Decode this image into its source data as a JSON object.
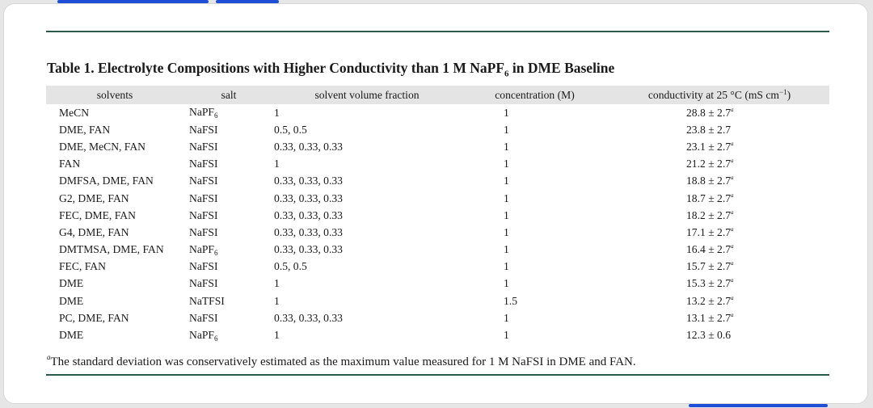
{
  "caption": {
    "prefix": "Table 1. Electrolyte Compositions with Higher Conductivity than 1 M NaPF",
    "sub": "6",
    "suffix": " in DME Baseline"
  },
  "table": {
    "headers": {
      "solvents": "solvents",
      "salt": "salt",
      "fraction": "solvent volume fraction",
      "concentration": "concentration (M)",
      "conductivity_pre": "conductivity at 25 °C (mS cm",
      "conductivity_sup": "−1",
      "conductivity_post": ")"
    },
    "rows": [
      {
        "solvents": "MeCN",
        "salt": "NaPF",
        "salt_sub": "6",
        "fraction": "1",
        "concentration": "1",
        "conductivity": "28.8 ± 2.7",
        "note": "a"
      },
      {
        "solvents": "DME, FAN",
        "salt": "NaFSI",
        "salt_sub": "",
        "fraction": "0.5, 0.5",
        "concentration": "1",
        "conductivity": "23.8 ± 2.7",
        "note": ""
      },
      {
        "solvents": "DME, MeCN, FAN",
        "salt": "NaFSI",
        "salt_sub": "",
        "fraction": "0.33, 0.33, 0.33",
        "concentration": "1",
        "conductivity": "23.1 ± 2.7",
        "note": "a"
      },
      {
        "solvents": "FAN",
        "salt": "NaFSI",
        "salt_sub": "",
        "fraction": "1",
        "concentration": "1",
        "conductivity": "21.2 ± 2.7",
        "note": "a"
      },
      {
        "solvents": "DMFSA, DME, FAN",
        "salt": "NaFSI",
        "salt_sub": "",
        "fraction": "0.33, 0.33, 0.33",
        "concentration": "1",
        "conductivity": "18.8 ± 2.7",
        "note": "a"
      },
      {
        "solvents": "G2, DME, FAN",
        "salt": "NaFSI",
        "salt_sub": "",
        "fraction": "0.33, 0.33, 0.33",
        "concentration": "1",
        "conductivity": "18.7 ± 2.7",
        "note": "a"
      },
      {
        "solvents": "FEC, DME, FAN",
        "salt": "NaFSI",
        "salt_sub": "",
        "fraction": "0.33, 0.33, 0.33",
        "concentration": "1",
        "conductivity": "18.2 ± 2.7",
        "note": "a"
      },
      {
        "solvents": "G4, DME, FAN",
        "salt": "NaFSI",
        "salt_sub": "",
        "fraction": "0.33, 0.33, 0.33",
        "concentration": "1",
        "conductivity": "17.1 ± 2.7",
        "note": "a"
      },
      {
        "solvents": "DMTMSA, DME, FAN",
        "salt": "NaPF",
        "salt_sub": "6",
        "fraction": "0.33, 0.33, 0.33",
        "concentration": "1",
        "conductivity": "16.4 ± 2.7",
        "note": "a"
      },
      {
        "solvents": "FEC, FAN",
        "salt": "NaFSI",
        "salt_sub": "",
        "fraction": "0.5, 0.5",
        "concentration": "1",
        "conductivity": "15.7 ± 2.7",
        "note": "a"
      },
      {
        "solvents": "DME",
        "salt": "NaFSI",
        "salt_sub": "",
        "fraction": "1",
        "concentration": "1",
        "conductivity": "15.3 ± 2.7",
        "note": "a"
      },
      {
        "solvents": "DME",
        "salt": "NaTFSI",
        "salt_sub": "",
        "fraction": "1",
        "concentration": "1.5",
        "conductivity": "13.2 ± 2.7",
        "note": "a"
      },
      {
        "solvents": "PC, DME, FAN",
        "salt": "NaFSI",
        "salt_sub": "",
        "fraction": "0.33, 0.33, 0.33",
        "concentration": "1",
        "conductivity": "13.1 ± 2.7",
        "note": "a"
      },
      {
        "solvents": "DME",
        "salt": "NaPF",
        "salt_sub": "6",
        "fraction": "1",
        "concentration": "1",
        "conductivity": "12.3 ± 0.6",
        "note": ""
      }
    ]
  },
  "footnote": {
    "marker": "a",
    "text": "The standard deviation was conservatively estimated as the maximum value measured for 1 M NaFSI in DME and FAN."
  },
  "colors": {
    "rule": "#2a5a4a",
    "header_bg": "#e4e4e4",
    "accent": "#1f4fd6"
  }
}
